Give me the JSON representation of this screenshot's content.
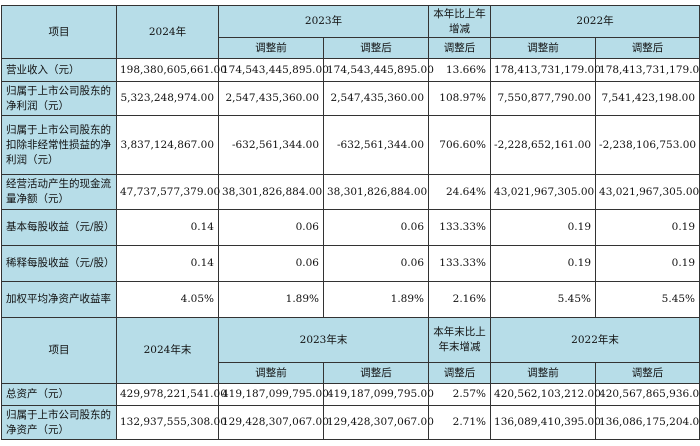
{
  "colors": {
    "header_bg": "#b7dde8",
    "border": "#333333"
  },
  "table1": {
    "header": {
      "item": "项目",
      "y2024": "2024年",
      "y2023": "2023年",
      "change": "本年比上年增减",
      "y2022": "2022年",
      "before": "调整前",
      "after": "调整后",
      "change_sub": "调整后"
    },
    "rows": [
      {
        "label": "营业收入（元）",
        "v": [
          "198,380,605,661.00",
          "174,543,445,895.00",
          "174,543,445,895.00",
          "13.66%",
          "178,413,731,179.00",
          "178,413,731,179.00"
        ]
      },
      {
        "label": "归属于上市公司股东的净利润（元）",
        "v": [
          "5,323,248,974.00",
          "2,547,435,360.00",
          "2,547,435,360.00",
          "108.97%",
          "7,550,877,790.00",
          "7,541,423,198.00"
        ]
      },
      {
        "label": "归属于上市公司股东的扣除非经常性损益的净利润（元）",
        "v": [
          "3,837,124,867.00",
          "-632,561,344.00",
          "-632,561,344.00",
          "706.60%",
          "-2,228,652,161.00",
          "-2,238,106,753.00"
        ]
      },
      {
        "label": "经营活动产生的现金流量净额（元）",
        "v": [
          "47,737,577,379.00",
          "38,301,826,884.00",
          "38,301,826,884.00",
          "24.64%",
          "43,021,967,305.00",
          "43,021,967,305.00"
        ]
      },
      {
        "label": "基本每股收益（元/股）",
        "v": [
          "0.14",
          "0.06",
          "0.06",
          "133.33%",
          "0.19",
          "0.19"
        ]
      },
      {
        "label": "稀释每股收益（元/股）",
        "v": [
          "0.14",
          "0.06",
          "0.06",
          "133.33%",
          "0.19",
          "0.19"
        ]
      },
      {
        "label": "加权平均净资产收益率",
        "v": [
          "4.05%",
          "1.89%",
          "1.89%",
          "2.16%",
          "5.45%",
          "5.45%"
        ]
      }
    ]
  },
  "table2": {
    "header": {
      "item": "项目",
      "y2024": "2024年末",
      "y2023": "2023年末",
      "change": "本年末比上年末增减",
      "y2022": "2022年末",
      "before": "调整前",
      "after": "调整后",
      "change_sub": "调整后"
    },
    "rows": [
      {
        "label": "总资产（元）",
        "v": [
          "429,978,221,541.00",
          "419,187,099,795.00",
          "419,187,099,795.00",
          "2.57%",
          "420,562,103,212.00",
          "420,567,865,936.00"
        ]
      },
      {
        "label": "归属于上市公司股东的净资产（元）",
        "v": [
          "132,937,555,308.00",
          "129,428,307,067.00",
          "129,428,307,067.00",
          "2.71%",
          "136,089,410,395.00",
          "136,086,175,204.00"
        ]
      }
    ]
  }
}
